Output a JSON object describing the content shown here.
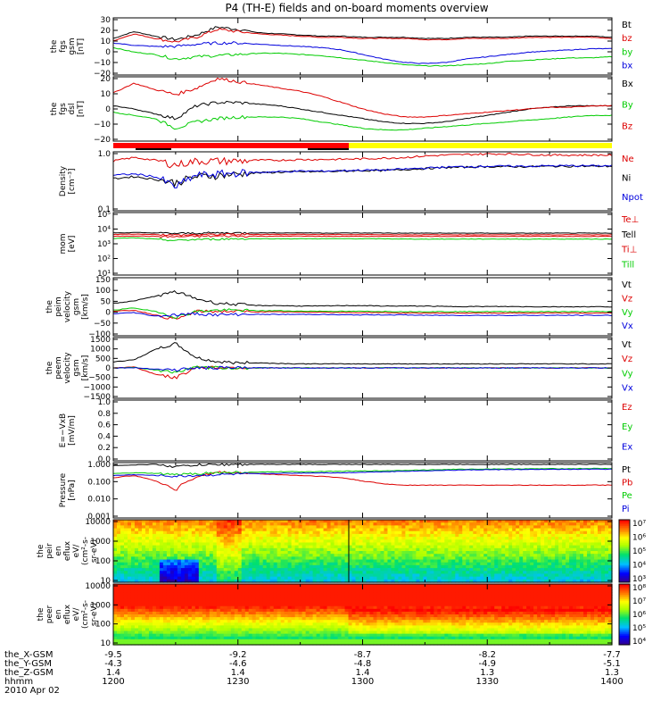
{
  "title": "P4 (TH-E) fields and on-board moments overview",
  "date": "2010 Apr 02",
  "colors": {
    "black": "#000000",
    "red": "#dd0000",
    "green": "#00cc00",
    "blue": "#0000dd"
  },
  "ephemeris": {
    "rows": [
      {
        "label": "the_X-GSM",
        "values": [
          "-9.5",
          "-9.2",
          "-8.7",
          "-8.2",
          "-7.7"
        ]
      },
      {
        "label": "the_Y-GSM",
        "values": [
          "-4.3",
          "-4.6",
          "-4.8",
          "-4.9",
          "-5.1"
        ]
      },
      {
        "label": "the_Z-GSM",
        "values": [
          "1.4",
          "1.4",
          "1.4",
          "1.3",
          "1.3"
        ]
      },
      {
        "label": "hhmm",
        "values": [
          "1200",
          "1230",
          "1300",
          "1330",
          "1400"
        ]
      }
    ]
  },
  "chart_data": [
    {
      "type": "line",
      "id": "fgs_gsm",
      "ylabel": [
        "the",
        "fgs",
        "gsm",
        "[nT]"
      ],
      "yticks": [
        "30",
        "20",
        "10",
        "0",
        "−10",
        "−20"
      ],
      "ylim": [
        -20,
        30
      ],
      "series": [
        {
          "name": "Bt",
          "color": "#000000",
          "values": [
            12,
            18,
            14,
            11,
            15,
            22,
            20,
            17,
            16,
            15,
            14,
            14,
            13,
            13,
            13,
            12,
            12,
            13,
            13,
            13,
            14,
            14,
            14,
            14,
            13
          ]
        },
        {
          "name": "bz",
          "color": "#dd0000",
          "values": [
            10,
            16,
            12,
            9,
            13,
            20,
            18,
            16,
            15,
            14,
            13,
            13,
            12,
            12,
            12,
            11,
            11,
            12,
            12,
            12,
            13,
            13,
            13,
            13,
            12
          ]
        },
        {
          "name": "by",
          "color": "#00cc00",
          "values": [
            4,
            0,
            -2,
            -6,
            -4,
            -3,
            -2,
            -1,
            -1,
            -2,
            -3,
            -5,
            -7,
            -9,
            -11,
            -12,
            -12,
            -11,
            -10,
            -8,
            -7,
            -6,
            -5,
            -5,
            -4
          ]
        },
        {
          "name": "bx",
          "color": "#0000dd",
          "values": [
            8,
            6,
            5,
            5,
            7,
            8,
            8,
            7,
            6,
            5,
            4,
            2,
            -2,
            -6,
            -9,
            -10,
            -9,
            -6,
            -4,
            -2,
            0,
            1,
            2,
            3,
            3
          ]
        }
      ]
    },
    {
      "type": "line",
      "id": "fgs_dsl",
      "ylabel": [
        "the",
        "fgs",
        "dsl",
        "[nT]"
      ],
      "yticks": [
        "20",
        "10",
        "0",
        "−10",
        "−20"
      ],
      "ylim": [
        -20,
        20
      ],
      "series": [
        {
          "name": "Bx",
          "color": "#000000",
          "values": [
            2,
            0,
            -3,
            -6,
            2,
            4,
            4,
            3,
            2,
            0,
            -2,
            -4,
            -6,
            -8,
            -9,
            -9,
            -8,
            -6,
            -4,
            -2,
            0,
            1,
            2,
            2,
            2
          ]
        },
        {
          "name": "By",
          "color": "#00cc00",
          "values": [
            -2,
            -4,
            -6,
            -12,
            -8,
            -6,
            -5,
            -5,
            -5,
            -6,
            -8,
            -10,
            -12,
            -13,
            -13,
            -12,
            -11,
            -10,
            -9,
            -8,
            -7,
            -6,
            -5,
            -4,
            -4
          ]
        },
        {
          "name": "Bz",
          "color": "#dd0000",
          "values": [
            10,
            16,
            12,
            9,
            13,
            19,
            17,
            15,
            13,
            11,
            8,
            4,
            0,
            -3,
            -5,
            -5,
            -4,
            -3,
            -2,
            -1,
            0,
            1,
            1,
            2,
            2
          ]
        }
      ]
    },
    {
      "type": "line",
      "id": "density",
      "ylabel": [
        "Density",
        "[cm⁻³]"
      ],
      "yticks": [
        "1.0",
        "0.1"
      ],
      "ylim": [
        0.1,
        1.0
      ],
      "yscale": "log",
      "series": [
        {
          "name": "Ne",
          "color": "#dd0000",
          "values": [
            0.7,
            0.8,
            0.72,
            0.6,
            0.7,
            0.7,
            0.7,
            0.72,
            0.72,
            0.74,
            0.74,
            0.75,
            0.76,
            0.78,
            0.8,
            0.85,
            0.88,
            0.9,
            0.92,
            0.92,
            0.9,
            0.88,
            0.88,
            0.88,
            0.88
          ]
        },
        {
          "name": "Ni",
          "color": "#000000",
          "values": [
            0.35,
            0.38,
            0.34,
            0.3,
            0.38,
            0.4,
            0.42,
            0.44,
            0.45,
            0.46,
            0.46,
            0.47,
            0.48,
            0.48,
            0.5,
            0.52,
            0.54,
            0.55,
            0.56,
            0.56,
            0.56,
            0.57,
            0.57,
            0.57,
            0.57
          ]
        },
        {
          "name": "Npot",
          "color": "#0000dd",
          "values": [
            0.4,
            0.42,
            0.38,
            0.25,
            0.4,
            0.42,
            0.44,
            0.45,
            0.46,
            0.47,
            0.47,
            0.48,
            0.49,
            0.49,
            0.51,
            0.53,
            0.55,
            0.56,
            0.57,
            0.57,
            0.57,
            0.58,
            0.58,
            0.58,
            0.58
          ]
        }
      ]
    },
    {
      "type": "line",
      "id": "temperature",
      "ylabel": [
        "mom",
        "[eV]"
      ],
      "yticks": [
        "10⁵",
        "10⁴",
        "10³",
        "10²",
        "10¹"
      ],
      "ylim": [
        10,
        100000
      ],
      "yscale": "log",
      "series": [
        {
          "name": "Te⊥",
          "color": "#dd0000",
          "values": [
            3000,
            3200,
            3000,
            2800,
            3000,
            3100,
            3100,
            3100,
            3100,
            3100,
            3000,
            3000,
            3000,
            3000,
            3000,
            3000,
            3000,
            3000,
            3000,
            3000,
            3000,
            3000,
            3000,
            3000,
            3000
          ]
        },
        {
          "name": "Tell",
          "color": "#000000",
          "values": [
            5000,
            5200,
            5000,
            4600,
            4800,
            5000,
            5000,
            5000,
            5000,
            5000,
            4900,
            4900,
            4900,
            4900,
            4800,
            4800,
            4800,
            4800,
            4800,
            4800,
            4800,
            4800,
            4800,
            4800,
            4800
          ]
        },
        {
          "name": "Ti⊥",
          "color": "#dd0000",
          "values": [
            4000,
            4200,
            4000,
            3600,
            3800,
            4000,
            4000,
            4000,
            4000,
            4000,
            3900,
            3900,
            3900,
            3900,
            3800,
            3800,
            3800,
            3800,
            3800,
            3800,
            3800,
            3800,
            3800,
            3800,
            3800
          ]
        },
        {
          "name": "Till",
          "color": "#00cc00",
          "values": [
            2200,
            2400,
            2000,
            1600,
            1900,
            2000,
            2100,
            2100,
            2100,
            2100,
            2100,
            2100,
            2100,
            2100,
            2000,
            2000,
            2000,
            2000,
            2000,
            2000,
            2000,
            2000,
            2000,
            2000,
            2000
          ]
        }
      ]
    },
    {
      "type": "line",
      "id": "peim_velocity",
      "ylabel": [
        "the",
        "peim",
        "velocity",
        "gsm",
        "[km/s]"
      ],
      "yticks": [
        "150",
        "100",
        "50",
        "0",
        "−50",
        "−100"
      ],
      "ylim": [
        -100,
        150
      ],
      "series": [
        {
          "name": "Vt",
          "color": "#000000",
          "values": [
            40,
            50,
            70,
            90,
            60,
            40,
            35,
            30,
            30,
            28,
            28,
            30,
            30,
            28,
            28,
            28,
            26,
            26,
            26,
            26,
            25,
            25,
            25,
            25,
            25
          ]
        },
        {
          "name": "Vz",
          "color": "#dd0000",
          "values": [
            5,
            10,
            -10,
            -30,
            5,
            5,
            5,
            3,
            3,
            2,
            2,
            0,
            0,
            0,
            -2,
            -2,
            -2,
            -2,
            -2,
            -2,
            -2,
            -2,
            -2,
            -2,
            -2
          ]
        },
        {
          "name": "Vy",
          "color": "#00cc00",
          "values": [
            10,
            20,
            5,
            -20,
            5,
            10,
            10,
            8,
            8,
            6,
            6,
            5,
            5,
            5,
            4,
            4,
            4,
            4,
            4,
            4,
            4,
            4,
            4,
            4,
            4
          ]
        },
        {
          "name": "Vx",
          "color": "#0000dd",
          "values": [
            -5,
            0,
            -15,
            -10,
            -5,
            -10,
            -8,
            -8,
            -8,
            -8,
            -8,
            -10,
            -10,
            -10,
            -10,
            -12,
            -12,
            -12,
            -12,
            -12,
            -12,
            -12,
            -12,
            -12,
            -12
          ]
        }
      ]
    },
    {
      "type": "line",
      "id": "peem_velocity",
      "ylabel": [
        "the",
        "peem",
        "velocity",
        "gsm",
        "[km/s]"
      ],
      "yticks": [
        "1500",
        "1000",
        "500",
        "0",
        "−500",
        "−1000",
        "−1500"
      ],
      "ylim": [
        -1500,
        1500
      ],
      "series": [
        {
          "name": "Vt",
          "color": "#000000",
          "values": [
            300,
            400,
            900,
            1200,
            500,
            300,
            250,
            250,
            220,
            200,
            200,
            200,
            200,
            200,
            200,
            200,
            200,
            200,
            200,
            200,
            200,
            200,
            200,
            200,
            200
          ]
        },
        {
          "name": "Vz",
          "color": "#dd0000",
          "values": [
            0,
            50,
            -300,
            -500,
            50,
            20,
            10,
            0,
            0,
            0,
            0,
            0,
            0,
            0,
            0,
            0,
            0,
            0,
            0,
            0,
            0,
            0,
            0,
            0,
            0
          ]
        },
        {
          "name": "Vy",
          "color": "#00cc00",
          "values": [
            0,
            30,
            -100,
            -200,
            20,
            10,
            0,
            0,
            0,
            0,
            0,
            0,
            0,
            0,
            0,
            0,
            0,
            0,
            0,
            0,
            0,
            0,
            0,
            0,
            0
          ]
        },
        {
          "name": "Vx",
          "color": "#0000dd",
          "values": [
            0,
            10,
            -50,
            -100,
            0,
            0,
            0,
            0,
            0,
            0,
            0,
            0,
            0,
            0,
            0,
            0,
            0,
            0,
            0,
            0,
            0,
            0,
            0,
            0,
            0
          ]
        }
      ]
    },
    {
      "type": "line",
      "id": "efield",
      "ylabel": [
        "E=−VxB",
        "[mV/m]"
      ],
      "yticks": [
        "1.0",
        "0.8",
        "0.6",
        "0.4",
        "0.2",
        "0.0"
      ],
      "ylim": [
        0,
        1
      ],
      "series": [
        {
          "name": "Ez",
          "color": "#dd0000",
          "values": []
        },
        {
          "name": "Ey",
          "color": "#00cc00",
          "values": []
        },
        {
          "name": "Ex",
          "color": "#0000dd",
          "values": []
        }
      ]
    },
    {
      "type": "line",
      "id": "pressure",
      "ylabel": [
        "Pressure",
        "[nPa]"
      ],
      "yticks": [
        "1.000",
        "0.100",
        "0.010",
        "0.001"
      ],
      "ylim": [
        0.001,
        1
      ],
      "yscale": "log",
      "series": [
        {
          "name": "Pt",
          "color": "#000000",
          "values": [
            0.7,
            0.75,
            0.8,
            0.6,
            0.75,
            0.78,
            0.8,
            0.8,
            0.8,
            0.8,
            0.8,
            0.8,
            0.8,
            0.8,
            0.8,
            0.8,
            0.8,
            0.8,
            0.8,
            0.8,
            0.8,
            0.8,
            0.8,
            0.8,
            0.8
          ]
        },
        {
          "name": "Pb",
          "color": "#dd0000",
          "values": [
            0.15,
            0.2,
            0.1,
            0.03,
            0.15,
            0.3,
            0.28,
            0.25,
            0.22,
            0.2,
            0.18,
            0.15,
            0.1,
            0.07,
            0.06,
            0.06,
            0.06,
            0.06,
            0.06,
            0.06,
            0.06,
            0.06,
            0.06,
            0.06,
            0.06
          ]
        },
        {
          "name": "Pe",
          "color": "#00cc00",
          "values": [
            0.25,
            0.28,
            0.26,
            0.22,
            0.26,
            0.28,
            0.3,
            0.3,
            0.32,
            0.32,
            0.33,
            0.34,
            0.35,
            0.36,
            0.38,
            0.4,
            0.42,
            0.44,
            0.45,
            0.46,
            0.46,
            0.47,
            0.47,
            0.48,
            0.48
          ]
        },
        {
          "name": "Pi",
          "color": "#0000dd",
          "values": [
            0.2,
            0.22,
            0.2,
            0.18,
            0.2,
            0.22,
            0.24,
            0.25,
            0.26,
            0.27,
            0.28,
            0.28,
            0.3,
            0.32,
            0.34,
            0.36,
            0.38,
            0.4,
            0.41,
            0.42,
            0.42,
            0.43,
            0.43,
            0.44,
            0.44
          ]
        }
      ]
    },
    {
      "type": "heatmap",
      "id": "peir_spectrogram",
      "ylabel": [
        "the",
        "peir",
        "en",
        "eflux",
        "eV/",
        "(cm²-s-",
        "sr-eV)"
      ],
      "yticks": [
        "10000",
        "1000",
        "100",
        "10"
      ],
      "ylim": [
        10,
        20000
      ],
      "yscale": "log",
      "colorbar": {
        "ticks": [
          "10⁷",
          "10⁶",
          "10⁵",
          "10⁴",
          "10³"
        ],
        "range": [
          1000,
          10000000
        ]
      }
    },
    {
      "type": "heatmap",
      "id": "peer_spectrogram",
      "ylabel": [
        "the",
        "peer",
        "en",
        "eflux",
        "eV/",
        "(cm²-s-",
        "sr-eV)"
      ],
      "yticks": [
        "10000",
        "1000",
        "100",
        "10"
      ],
      "ylim": [
        10,
        20000
      ],
      "yscale": "log",
      "colorbar": {
        "ticks": [
          "10⁸",
          "10⁷",
          "10⁶",
          "10⁵",
          "10⁴"
        ],
        "range": [
          10000,
          100000000
        ]
      }
    }
  ]
}
